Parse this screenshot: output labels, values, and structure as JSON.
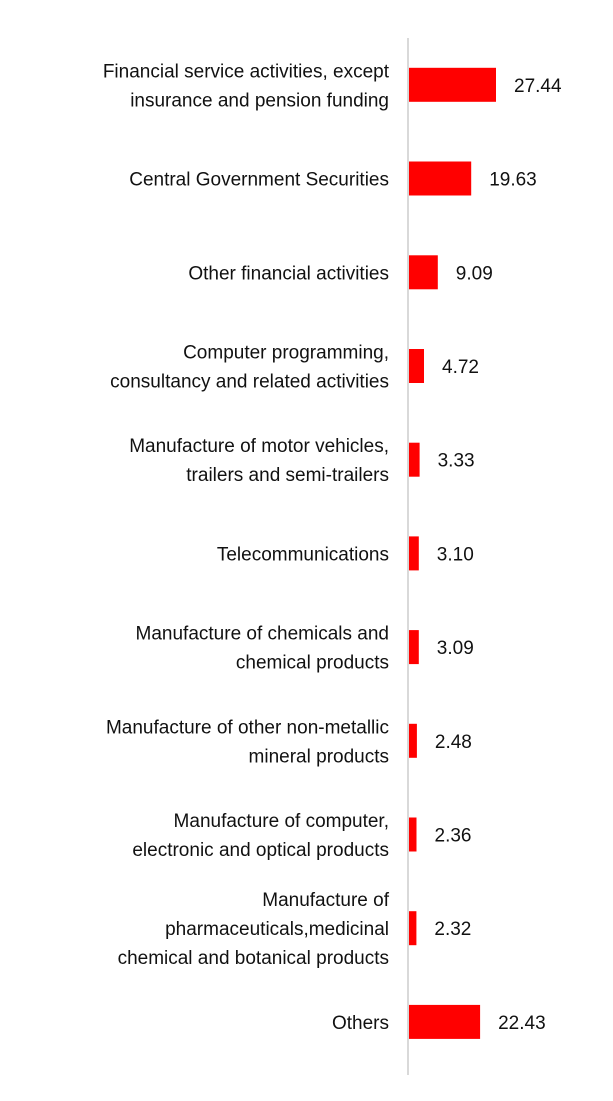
{
  "chart_data": {
    "type": "bar",
    "orientation": "horizontal",
    "categories": [
      [
        "Financial service activities, except",
        "insurance and pension funding"
      ],
      [
        "Central Government Securities"
      ],
      [
        "Other financial activities"
      ],
      [
        "Computer programming,",
        "consultancy and related activities"
      ],
      [
        "Manufacture of motor vehicles,",
        "trailers and semi-trailers"
      ],
      [
        "Telecommunications"
      ],
      [
        "Manufacture of chemicals and",
        "chemical products"
      ],
      [
        "Manufacture of other non-metallic",
        "mineral products"
      ],
      [
        "Manufacture of computer,",
        "electronic and optical products"
      ],
      [
        "Manufacture of",
        "pharmaceuticals,medicinal",
        "chemical and botanical products"
      ],
      [
        "Others"
      ]
    ],
    "values": [
      27.44,
      19.63,
      9.09,
      4.72,
      3.33,
      3.1,
      3.09,
      2.48,
      2.36,
      2.32,
      22.43
    ],
    "value_labels": [
      "27.44",
      "19.63",
      "9.09",
      "4.72",
      "3.33",
      "3.10",
      "3.09",
      "2.48",
      "2.36",
      "2.32",
      "22.43"
    ],
    "bar_color": "#ff0000",
    "axis_color": "#d9d9d9",
    "title": "",
    "xlabel": "",
    "ylabel": "",
    "grid": false,
    "legend": false
  }
}
